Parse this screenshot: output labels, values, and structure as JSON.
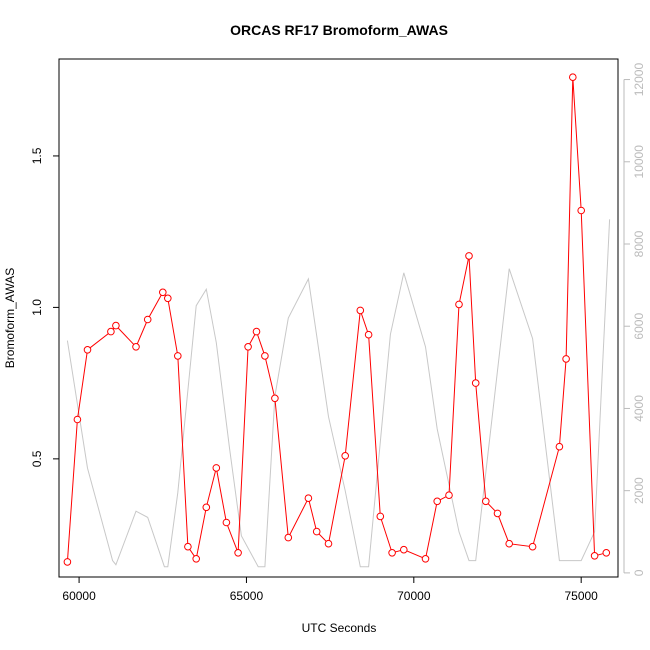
{
  "chart_data": {
    "type": "line",
    "title": "ORCAS RF17 Bromoform_AWAS",
    "xlabel": "UTC Seconds",
    "ylabel": "Bromoform_AWAS",
    "xlim": [
      59400,
      76100
    ],
    "ylim": [
      0.11,
      1.82
    ],
    "y2lim": [
      -100,
      12500
    ],
    "x_ticks": [
      60000,
      65000,
      70000,
      75000
    ],
    "x_tick_labels": [
      "60000",
      "65000",
      "70000",
      "75000"
    ],
    "y_ticks": [
      0.5,
      1.0,
      1.5
    ],
    "y_tick_labels": [
      "0.5",
      "1.0",
      "1.5"
    ],
    "y2_ticks": [
      0,
      2000,
      4000,
      6000,
      8000,
      10000,
      12000
    ],
    "y2_tick_labels": [
      "0",
      "2000",
      "4000",
      "6000",
      "8000",
      "10000",
      "12000"
    ],
    "colors": {
      "primary": "#ff0000",
      "secondary": "#c8c8c8",
      "right_axis": "#bbbbbb"
    },
    "series": [
      {
        "axis": "left",
        "style": "line-with-open-circles",
        "color": "#ff0000",
        "x": [
          59650,
          59950,
          60250,
          60950,
          61100,
          61700,
          62050,
          62500,
          62650,
          62950,
          63250,
          63500,
          63800,
          64100,
          64400,
          64750,
          65050,
          65300,
          65550,
          65850,
          66250,
          66850,
          67100,
          67450,
          67950,
          68400,
          68650,
          69000,
          69350,
          69700,
          70350,
          70700,
          71050,
          71350,
          71650,
          71850,
          72150,
          72500,
          72850,
          73550,
          74350,
          74550,
          74750,
          75000,
          75400,
          75750
        ],
        "y": [
          0.16,
          0.63,
          0.86,
          0.92,
          0.94,
          0.87,
          0.96,
          1.05,
          1.03,
          0.84,
          0.21,
          0.17,
          0.34,
          0.47,
          0.29,
          0.19,
          0.87,
          0.92,
          0.84,
          0.7,
          0.24,
          0.37,
          0.26,
          0.22,
          0.51,
          0.99,
          0.91,
          0.31,
          0.19,
          0.2,
          0.17,
          0.36,
          0.38,
          1.01,
          1.17,
          0.75,
          0.36,
          0.32,
          0.22,
          0.21,
          0.54,
          0.83,
          1.76,
          1.32,
          0.18,
          0.19
        ]
      },
      {
        "axis": "right",
        "style": "line",
        "color": "#c8c8c8",
        "x": [
          59650,
          60250,
          61000,
          61100,
          61700,
          62050,
          62550,
          62650,
          62950,
          63500,
          63800,
          64100,
          64500,
          64850,
          65350,
          65550,
          65850,
          66250,
          66850,
          67450,
          67950,
          68400,
          68650,
          69300,
          69700,
          70350,
          70700,
          71350,
          71650,
          71850,
          72850,
          73550,
          74350,
          74550,
          74750,
          75000,
          75400,
          75850
        ],
        "y": [
          5650,
          2550,
          300,
          200,
          1500,
          1350,
          150,
          150,
          1950,
          6500,
          6900,
          5600,
          3000,
          900,
          150,
          150,
          4300,
          6200,
          7150,
          3800,
          2000,
          150,
          150,
          5800,
          7300,
          5500,
          3500,
          1000,
          300,
          300,
          7400,
          5700,
          300,
          300,
          300,
          300,
          1000,
          8600
        ]
      }
    ]
  }
}
